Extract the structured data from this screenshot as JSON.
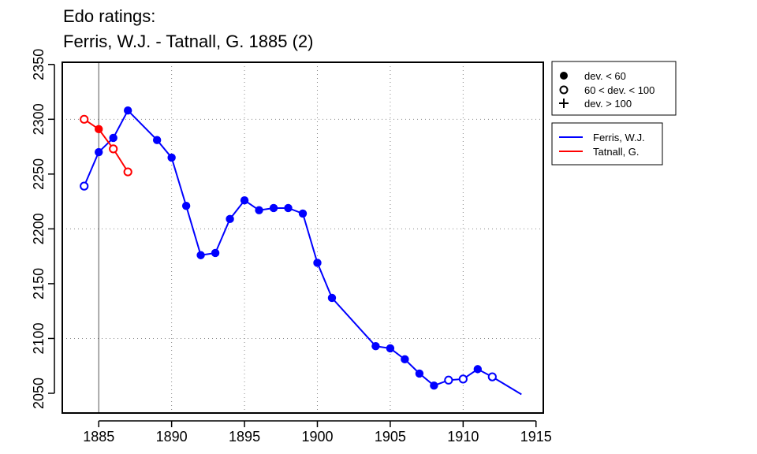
{
  "title": {
    "line1": "Edo ratings:",
    "line2": "Ferris, W.J. - Tatnall, G. 1885 (2)"
  },
  "legends": {
    "markers": [
      {
        "symbol": "filled-circle",
        "label": "dev. < 60"
      },
      {
        "symbol": "open-circle",
        "label": "60 < dev. < 100"
      },
      {
        "symbol": "plus",
        "label": "dev. > 100"
      }
    ],
    "players": [
      {
        "name": "Ferris, W.J.",
        "color": "#0000ff"
      },
      {
        "name": "Tatnall, G.",
        "color": "#ff0000"
      }
    ]
  },
  "chart_data": {
    "type": "line",
    "title": "Edo ratings: Ferris, W.J. - Tatnall, G. 1885 (2)",
    "xlabel": "",
    "ylabel": "",
    "xlim": [
      1882.5,
      1915.5
    ],
    "ylim": [
      2032,
      2352
    ],
    "x_ticks": [
      1885,
      1890,
      1895,
      1900,
      1905,
      1910,
      1915
    ],
    "y_ticks": [
      2050,
      2100,
      2150,
      2200,
      2250,
      2300,
      2350
    ],
    "grid": "dotted, x at 1890/1895/1900/1905/1910, y at 2100/2200/2300",
    "reference_line_x": 1885,
    "legend_placement": "right, outside plot",
    "series": [
      {
        "name": "Ferris, W.J.",
        "color": "#0000ff",
        "points": [
          {
            "x": 1884,
            "y": 2239,
            "marker": "open"
          },
          {
            "x": 1885,
            "y": 2270,
            "marker": "filled"
          },
          {
            "x": 1886,
            "y": 2283,
            "marker": "filled"
          },
          {
            "x": 1887,
            "y": 2308,
            "marker": "filled"
          },
          {
            "x": 1889,
            "y": 2281,
            "marker": "filled"
          },
          {
            "x": 1890,
            "y": 2265,
            "marker": "filled"
          },
          {
            "x": 1891,
            "y": 2221,
            "marker": "filled"
          },
          {
            "x": 1892,
            "y": 2176,
            "marker": "filled"
          },
          {
            "x": 1893,
            "y": 2178,
            "marker": "filled"
          },
          {
            "x": 1894,
            "y": 2209,
            "marker": "filled"
          },
          {
            "x": 1895,
            "y": 2226,
            "marker": "filled"
          },
          {
            "x": 1896,
            "y": 2217,
            "marker": "filled"
          },
          {
            "x": 1897,
            "y": 2219,
            "marker": "filled"
          },
          {
            "x": 1898,
            "y": 2219,
            "marker": "filled"
          },
          {
            "x": 1899,
            "y": 2214,
            "marker": "filled"
          },
          {
            "x": 1900,
            "y": 2169,
            "marker": "filled"
          },
          {
            "x": 1901,
            "y": 2137,
            "marker": "filled"
          },
          {
            "x": 1904,
            "y": 2093,
            "marker": "filled"
          },
          {
            "x": 1905,
            "y": 2091,
            "marker": "filled"
          },
          {
            "x": 1906,
            "y": 2081,
            "marker": "filled"
          },
          {
            "x": 1907,
            "y": 2068,
            "marker": "filled"
          },
          {
            "x": 1908,
            "y": 2057,
            "marker": "filled"
          },
          {
            "x": 1909,
            "y": 2062,
            "marker": "open"
          },
          {
            "x": 1910,
            "y": 2063,
            "marker": "open"
          },
          {
            "x": 1911,
            "y": 2072,
            "marker": "filled"
          },
          {
            "x": 1912,
            "y": 2065,
            "marker": "open"
          },
          {
            "x": 1914,
            "y": 2049,
            "marker": "none"
          }
        ]
      },
      {
        "name": "Tatnall, G.",
        "color": "#ff0000",
        "points": [
          {
            "x": 1884,
            "y": 2300,
            "marker": "open"
          },
          {
            "x": 1885,
            "y": 2291,
            "marker": "filled"
          },
          {
            "x": 1886,
            "y": 2273,
            "marker": "open"
          },
          {
            "x": 1887,
            "y": 2252,
            "marker": "open"
          }
        ]
      }
    ]
  }
}
